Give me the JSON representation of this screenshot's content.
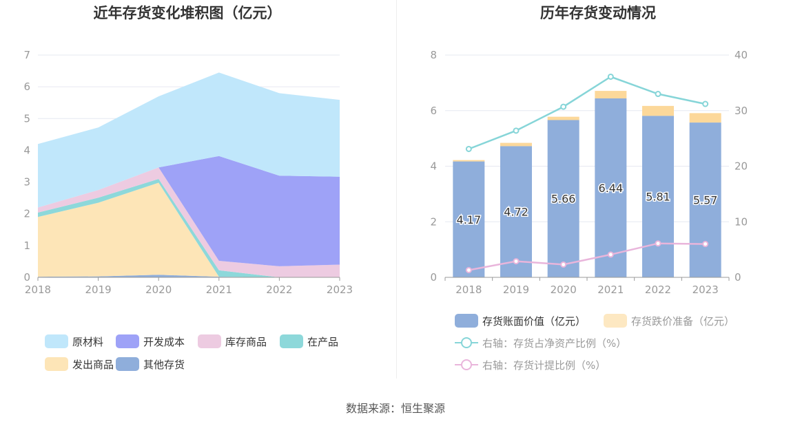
{
  "source_label": "数据来源：恒生聚源",
  "colors": {
    "raw_materials": "#c0e7fb",
    "dev_cost": "#9ea2f7",
    "stock_goods": "#edcbe1",
    "in_process": "#8dd8da",
    "shipped_goods": "#fde5b7",
    "other": "#8faedb",
    "book_value": "#8faedb",
    "impairment": "#fcd89a",
    "ratio_net_assets": "#86d5d8",
    "ratio_provision": "#e9b5db"
  },
  "chart_data": [
    {
      "type": "area",
      "stacked": true,
      "title": "近年存货变化堆积图（亿元）",
      "categories": [
        "2018",
        "2019",
        "2020",
        "2021",
        "2022",
        "2023"
      ],
      "ylim": [
        0,
        7
      ],
      "y_ticks": [
        "0",
        "1",
        "2",
        "3",
        "4",
        "5",
        "6",
        "7"
      ],
      "grid": true,
      "legend_position": "bottom",
      "series": [
        {
          "name": "其他存货",
          "color_key": "other",
          "values": [
            0.02,
            0.03,
            0.08,
            0.02,
            0.0,
            0.0
          ]
        },
        {
          "name": "发出商品",
          "color_key": "shipped_goods",
          "values": [
            1.88,
            2.32,
            2.9,
            0.0,
            0.0,
            0.0
          ]
        },
        {
          "name": "在产品",
          "color_key": "in_process",
          "values": [
            0.14,
            0.16,
            0.12,
            0.2,
            0.0,
            0.0
          ]
        },
        {
          "name": "库存商品",
          "color_key": "stock_goods",
          "values": [
            0.16,
            0.24,
            0.36,
            0.3,
            0.35,
            0.4
          ]
        },
        {
          "name": "开发成本",
          "color_key": "dev_cost",
          "values": [
            0.0,
            0.0,
            0.0,
            3.3,
            2.85,
            2.77
          ]
        },
        {
          "name": "原材料",
          "color_key": "raw_materials",
          "values": [
            2.0,
            1.97,
            2.24,
            2.63,
            2.6,
            2.42
          ]
        }
      ],
      "legend_rows": [
        [
          "原材料",
          "开发成本",
          "库存商品",
          "在产品"
        ],
        [
          "发出商品",
          "其他存货"
        ]
      ]
    },
    {
      "type": "bar",
      "stacked": true,
      "title": "历年存货变动情况",
      "categories": [
        "2018",
        "2019",
        "2020",
        "2021",
        "2022",
        "2023"
      ],
      "ylim": [
        0,
        8
      ],
      "y_ticks": [
        "0",
        "2",
        "4",
        "6",
        "8"
      ],
      "y2lim": [
        0,
        40
      ],
      "y2_ticks": [
        "0",
        "10",
        "20",
        "30",
        "40"
      ],
      "grid": true,
      "legend_position": "bottom",
      "series": [
        {
          "name": "存货账面价值（亿元）",
          "kind": "bar",
          "color_key": "book_value",
          "values": [
            4.17,
            4.72,
            5.66,
            6.44,
            5.81,
            5.57
          ],
          "labels": [
            "4.17",
            "4.72",
            "5.66",
            "6.44",
            "5.81",
            "5.57"
          ]
        },
        {
          "name": "存货跌价准备（亿元）",
          "kind": "bar",
          "color_key": "impairment",
          "values": [
            0.05,
            0.12,
            0.12,
            0.27,
            0.36,
            0.34
          ]
        },
        {
          "name": "右轴：存货占净资产比例（%）",
          "kind": "line",
          "axis": "right",
          "color_key": "ratio_net_assets",
          "values": [
            23.1,
            26.4,
            30.7,
            36.1,
            33.0,
            31.2
          ]
        },
        {
          "name": "右轴：存货计提比例（%）",
          "kind": "line",
          "axis": "right",
          "color_key": "ratio_provision",
          "values": [
            1.3,
            2.9,
            2.3,
            4.1,
            6.1,
            6.0
          ]
        }
      ]
    }
  ]
}
